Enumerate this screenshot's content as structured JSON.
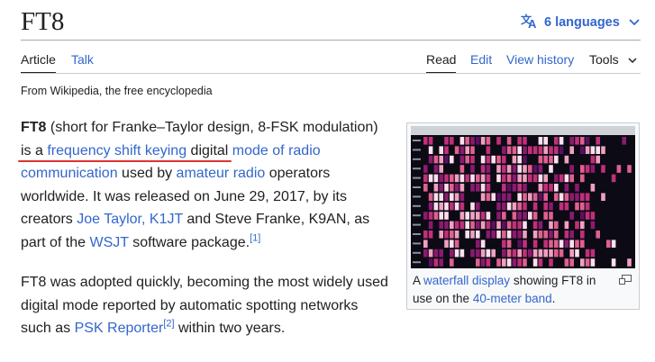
{
  "page": {
    "title": "FT8",
    "languages_label": "6 languages",
    "tagline": "From Wikipedia, the free encyclopedia"
  },
  "tabs": {
    "left": [
      "Article",
      "Talk"
    ],
    "right": [
      "Read",
      "Edit",
      "View history",
      "Tools"
    ]
  },
  "lead": {
    "term": "FT8",
    "t1": " (short for Franke–Taylor design, 8-FSK modulation) is a ",
    "l1": "frequency shift keying",
    "t2": " digital ",
    "l2": "mode",
    "t3": " ",
    "l3": "of radio communication",
    "t4": " used by ",
    "l4": "amateur radio",
    "t5": " operators worldwide. It was released on June 29, 2017, by its creators ",
    "l5": "Joe Taylor, K1JT",
    "t6": " and Steve Franke, K9AN, as part of the ",
    "l6": "WSJT",
    "t7": " software package.",
    "ref1": "[1]"
  },
  "second": {
    "t1": "FT8 was adopted quickly, becoming the most widely used digital mode reported by automatic spotting networks such as ",
    "l1": "PSK Reporter",
    "ref2": "[2]",
    "t2": " within two years."
  },
  "figure": {
    "c1": "A ",
    "l1": "waterfall display",
    "c2": " showing FT8 in use on the ",
    "l2": "40-meter band",
    "c3": "."
  },
  "icons": {
    "language": "translate-icon",
    "dropdown": "chevron-down-icon",
    "enlarge": "enlarge-icon"
  },
  "colors": {
    "link": "#3366cc",
    "text": "#202122",
    "highlight": "#dd3333"
  }
}
